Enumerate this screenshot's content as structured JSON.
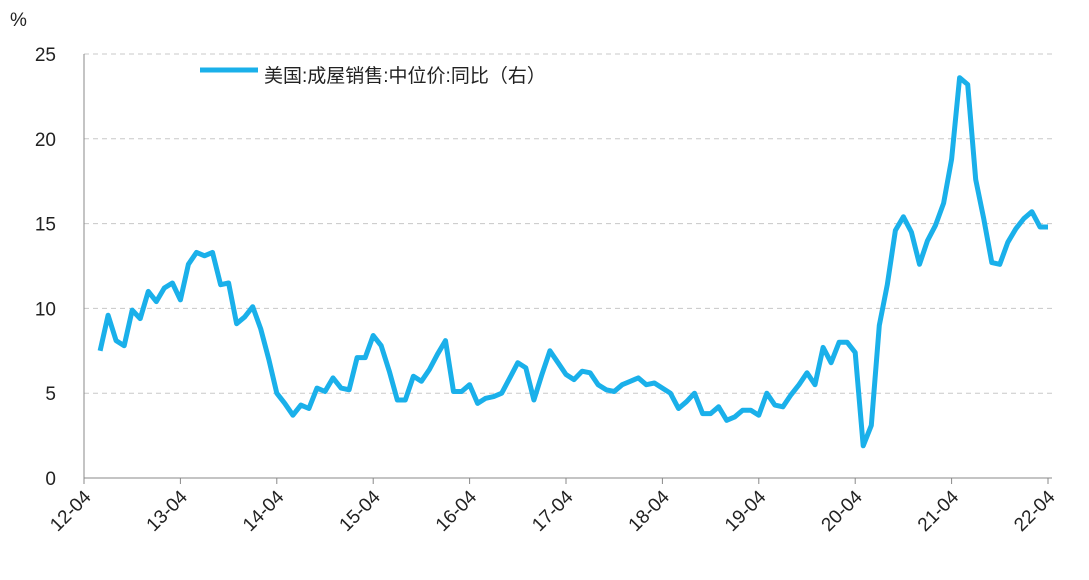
{
  "chart_data": {
    "type": "line",
    "y_unit": "%",
    "categories": [
      "12-04",
      null,
      null,
      null,
      null,
      null,
      null,
      null,
      null,
      null,
      null,
      null,
      "13-04",
      null,
      null,
      null,
      null,
      null,
      null,
      null,
      null,
      null,
      null,
      null,
      "14-04",
      null,
      null,
      null,
      null,
      null,
      null,
      null,
      null,
      null,
      null,
      null,
      "15-04",
      null,
      null,
      null,
      null,
      null,
      null,
      null,
      null,
      null,
      null,
      null,
      "16-04",
      null,
      null,
      null,
      null,
      null,
      null,
      null,
      null,
      null,
      null,
      null,
      "17-04",
      null,
      null,
      null,
      null,
      null,
      null,
      null,
      null,
      null,
      null,
      null,
      "18-04",
      null,
      null,
      null,
      null,
      null,
      null,
      null,
      null,
      null,
      null,
      null,
      "19-04",
      null,
      null,
      null,
      null,
      null,
      null,
      null,
      null,
      null,
      null,
      null,
      "20-04",
      null,
      null,
      null,
      null,
      null,
      null,
      null,
      null,
      null,
      null,
      null,
      "21-04",
      null,
      null,
      null,
      null,
      null,
      null,
      null,
      null,
      null,
      null,
      null,
      "22-04"
    ],
    "series": [
      {
        "name": "美国:成屋销售:中位价:同比（右）",
        "color": "#1ab0ea",
        "values": [
          null,
          null,
          7.5,
          9.6,
          8.1,
          7.8,
          9.9,
          9.4,
          11.0,
          10.4,
          11.2,
          11.5,
          10.5,
          12.6,
          13.3,
          13.1,
          13.3,
          11.4,
          11.5,
          9.1,
          9.5,
          10.1,
          8.8,
          7.0,
          5.0,
          4.4,
          3.7,
          4.3,
          4.1,
          5.3,
          5.1,
          5.9,
          5.3,
          5.2,
          7.1,
          7.1,
          8.4,
          7.8,
          6.3,
          4.6,
          4.6,
          6.0,
          5.7,
          6.4,
          7.3,
          8.1,
          5.1,
          5.1,
          5.5,
          4.4,
          4.7,
          4.8,
          5.0,
          5.9,
          6.8,
          6.5,
          4.6,
          6.1,
          7.5,
          6.8,
          6.1,
          5.8,
          6.3,
          6.2,
          5.5,
          5.2,
          5.1,
          5.5,
          5.7,
          5.9,
          5.5,
          5.6,
          5.3,
          5.0,
          4.1,
          4.5,
          5.0,
          3.8,
          3.8,
          4.2,
          3.4,
          3.6,
          4.0,
          4.0,
          3.7,
          5.0,
          4.3,
          4.2,
          4.9,
          5.5,
          6.2,
          5.5,
          7.7,
          6.8,
          8.0,
          8.0,
          7.4,
          1.9,
          3.1,
          9.0,
          11.4,
          14.6,
          15.4,
          14.5,
          12.6,
          14.0,
          14.9,
          16.2,
          18.8,
          23.6,
          23.2,
          17.6,
          15.3,
          12.7,
          12.6,
          13.9,
          14.7,
          15.3,
          15.7,
          14.8,
          14.8
        ]
      }
    ],
    "ylim": [
      0,
      25
    ],
    "yticks": [
      0,
      5,
      10,
      15,
      20,
      25
    ],
    "grid": true
  }
}
